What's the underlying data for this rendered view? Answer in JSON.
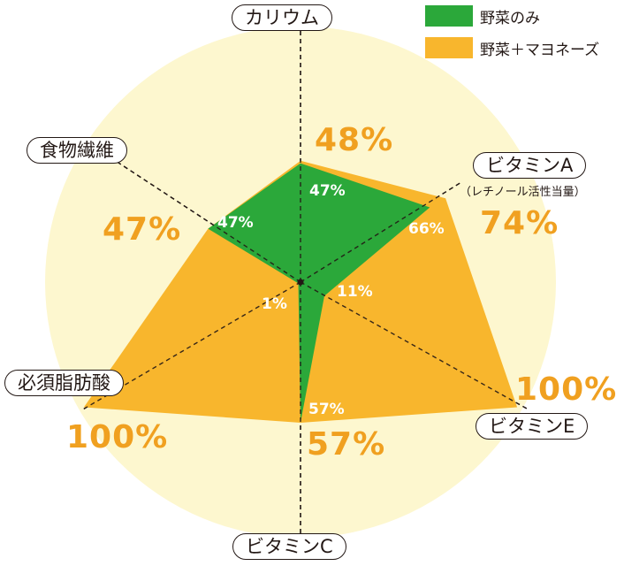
{
  "chart_data": {
    "type": "radar",
    "axes": [
      "カリウム",
      "ビタミンA",
      "ビタミンE",
      "ビタミンC",
      "必須脂肪酸",
      "食物繊維"
    ],
    "axis_subtitles": {
      "ビタミンA": "（レチノール活性当量）"
    },
    "range": [
      0,
      100
    ],
    "series": [
      {
        "name": "野菜のみ",
        "color": "#2ba83a",
        "values": [
          47,
          66,
          11,
          57,
          1,
          47
        ]
      },
      {
        "name": "野菜＋マヨネーズ",
        "color": "#f8b62d",
        "values": [
          48,
          74,
          100,
          57,
          100,
          47
        ]
      }
    ],
    "outer_labels": [
      "48%",
      "74%",
      "100%",
      "57%",
      "100%",
      "47%"
    ],
    "inner_labels": [
      "47%",
      "66%",
      "11%",
      "57%",
      "1%",
      "47%"
    ],
    "background_color": "#fdf7cf",
    "label_color": "#f0a020"
  }
}
